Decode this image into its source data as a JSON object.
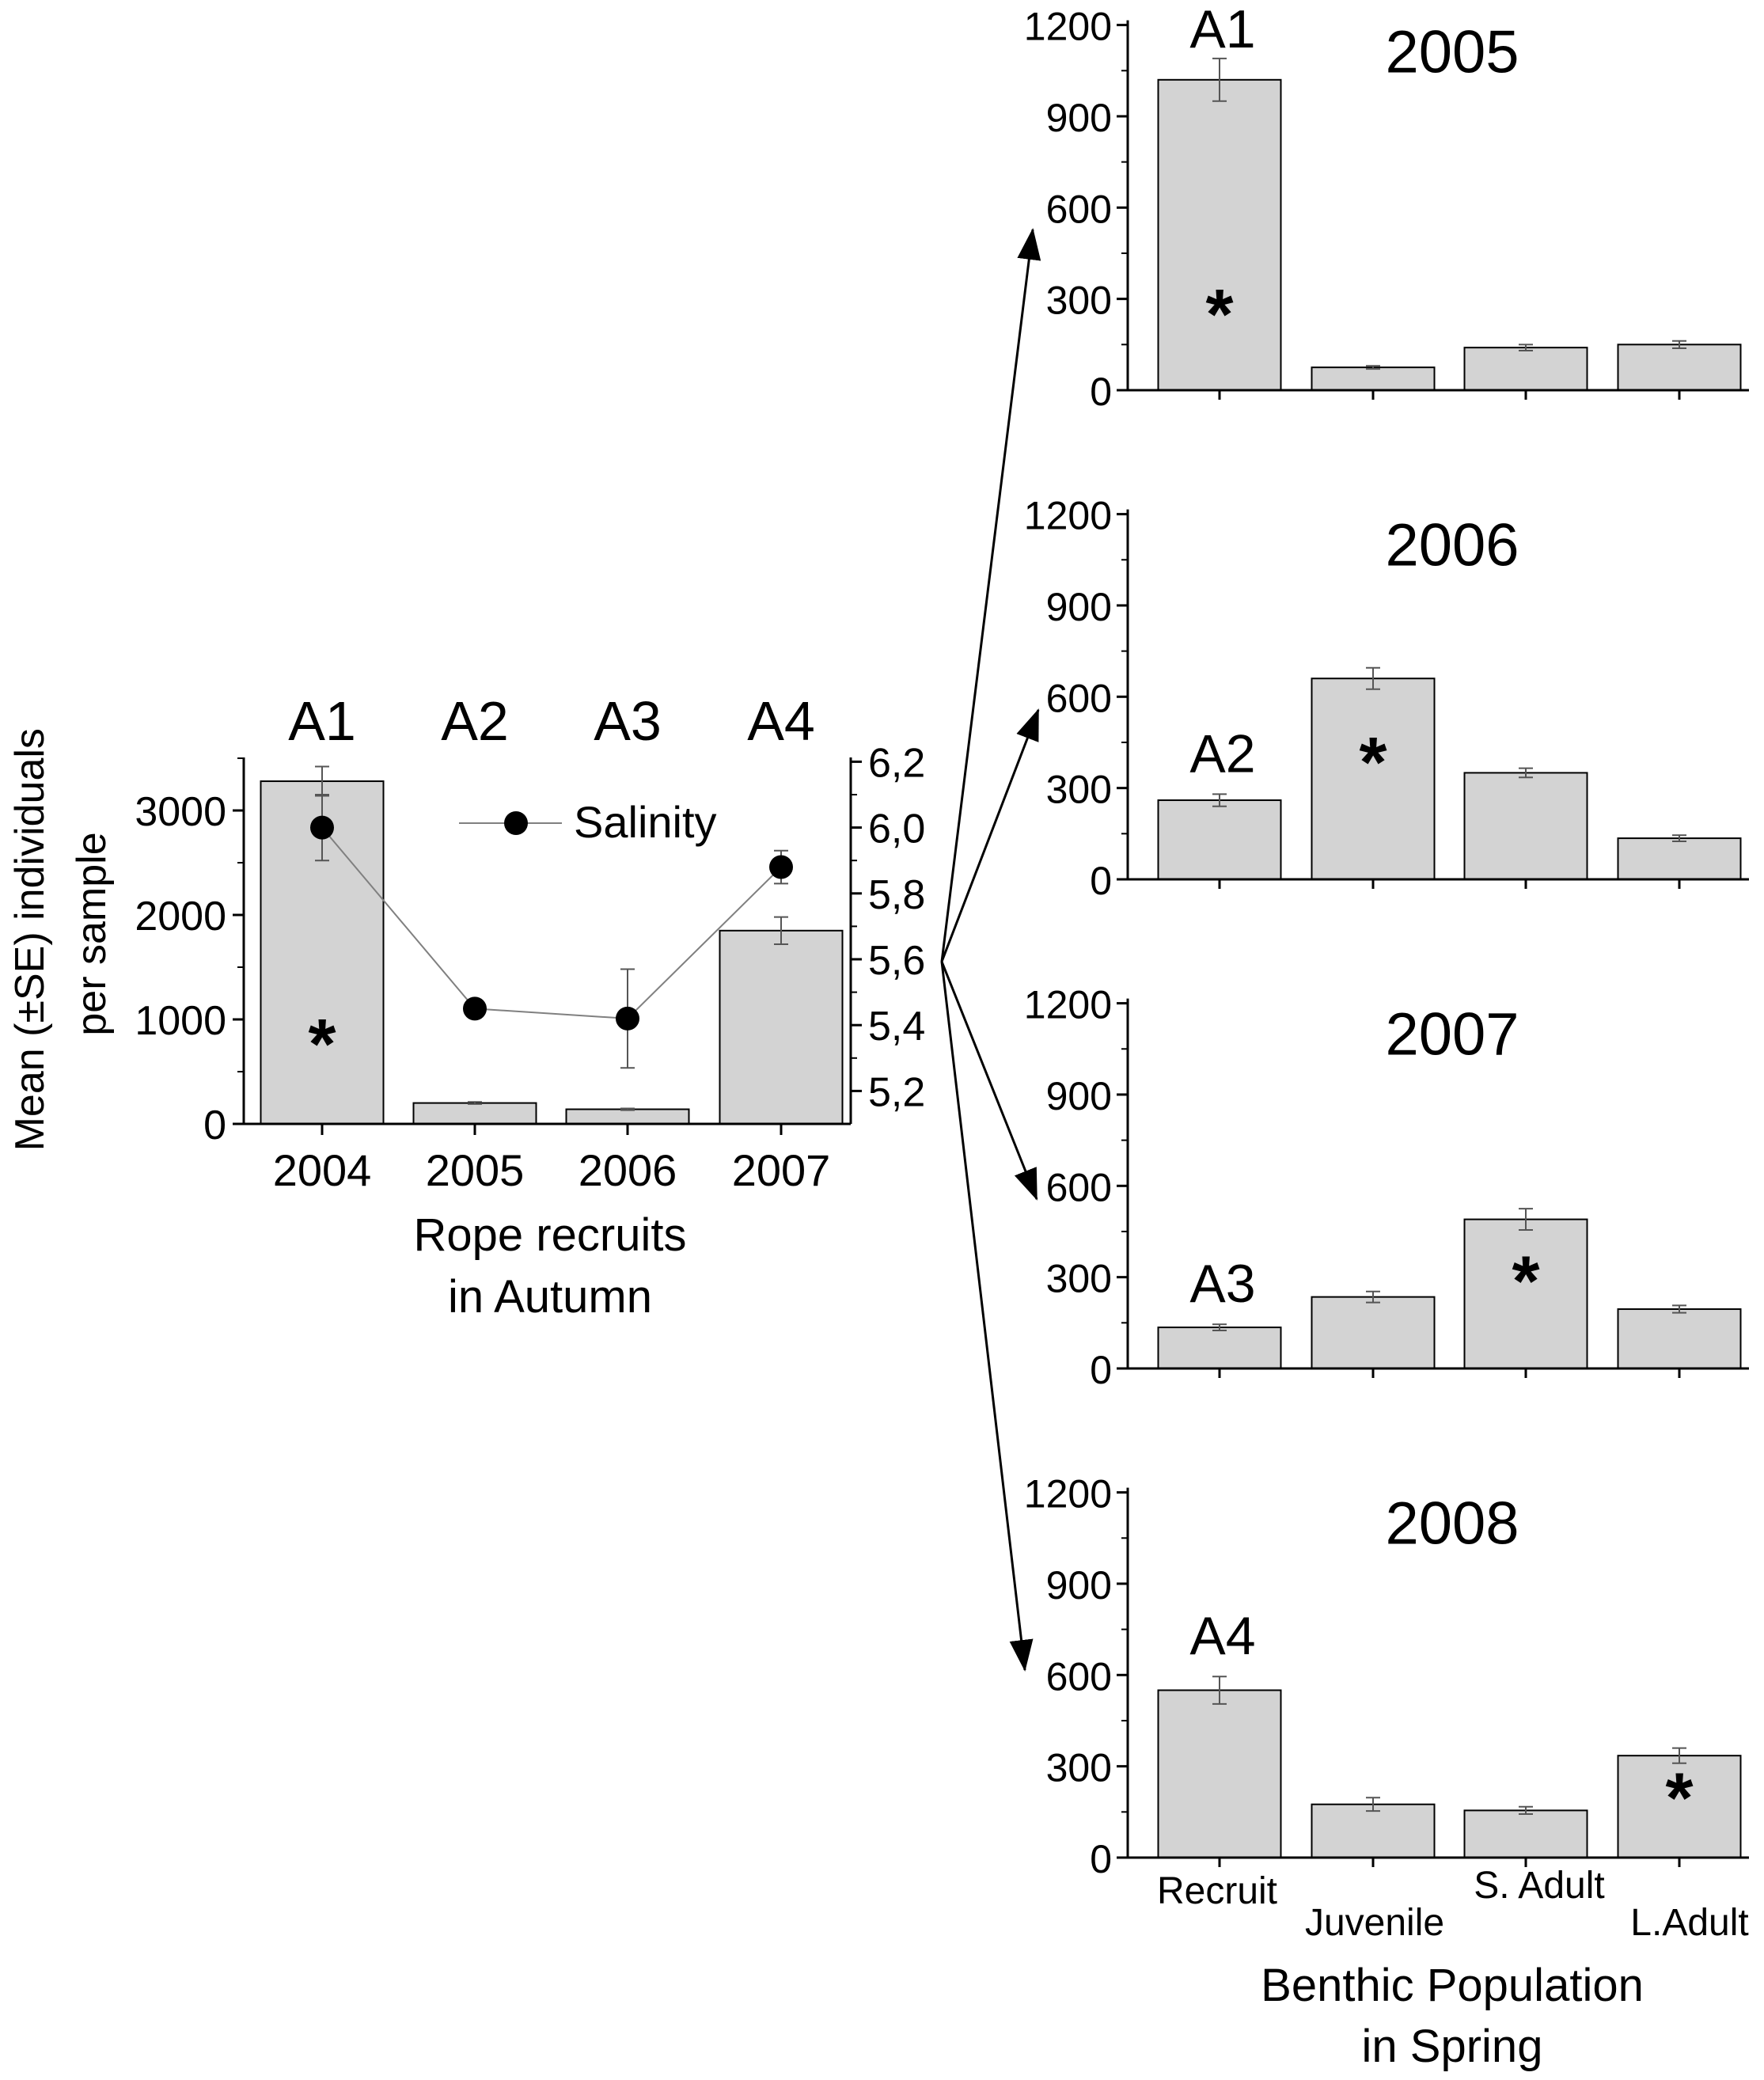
{
  "chart_data": [
    {
      "id": "rope-recruits",
      "type": "bar",
      "categories": [
        "2004",
        "2005",
        "2006",
        "2007"
      ],
      "values": [
        3280,
        200,
        140,
        1850
      ],
      "errors": [
        140,
        10,
        8,
        130
      ],
      "bar_annotations": [
        "A1",
        "A2",
        "A3",
        "A4"
      ],
      "significance": [
        "*",
        "",
        "",
        ""
      ],
      "ylim": [
        0,
        3500
      ],
      "yticks": [
        0,
        1000,
        2000,
        3000
      ],
      "ylabel": "Mean (±SE) individuals per sample",
      "ylabel_lines": [
        "Mean (±SE) individuals",
        "per sample"
      ],
      "xlabel_lines": [
        "Rope recruits",
        "in Autumn"
      ],
      "secondary_axis": {
        "ylim": [
          5.1,
          6.2
        ],
        "yticks": [
          "5,2",
          "5,4",
          "5,6",
          "5,8",
          "6,0",
          "6,2"
        ],
        "ytick_values": [
          5.2,
          5.4,
          5.6,
          5.8,
          6.0,
          6.2
        ]
      },
      "series": [
        {
          "name": "Salinity",
          "type": "line",
          "axis": "secondary",
          "values": [
            6.0,
            5.45,
            5.42,
            5.88
          ],
          "errors": [
            0.1,
            0.0,
            0.15,
            0.05
          ]
        }
      ],
      "legend": {
        "label": "Salinity",
        "position": "top-center"
      },
      "grid": false
    },
    {
      "id": "spring-2005",
      "type": "bar",
      "title": "2005",
      "annotation": "A1",
      "categories": [
        "Recruit",
        "Juvenile",
        "S. Adult",
        "L.Adult"
      ],
      "values": [
        1020,
        75,
        140,
        150
      ],
      "errors": [
        70,
        5,
        10,
        12
      ],
      "significance": [
        "*",
        "",
        "",
        ""
      ],
      "ylim": [
        0,
        1200
      ],
      "yticks": [
        0,
        300,
        600,
        900,
        1200
      ],
      "grid": false
    },
    {
      "id": "spring-2006",
      "type": "bar",
      "title": "2006",
      "annotation": "A2",
      "categories": [
        "Recruit",
        "Juvenile",
        "S. Adult",
        "L.Adult"
      ],
      "values": [
        260,
        660,
        350,
        135
      ],
      "errors": [
        20,
        35,
        15,
        10
      ],
      "significance": [
        "",
        "*",
        "",
        ""
      ],
      "ylim": [
        0,
        1200
      ],
      "yticks": [
        0,
        300,
        600,
        900,
        1200
      ],
      "grid": false
    },
    {
      "id": "spring-2007",
      "type": "bar",
      "title": "2007",
      "annotation": "A3",
      "categories": [
        "Recruit",
        "Juvenile",
        "S. Adult",
        "L.Adult"
      ],
      "values": [
        135,
        235,
        490,
        195
      ],
      "errors": [
        10,
        18,
        35,
        12
      ],
      "significance": [
        "",
        "",
        "*",
        ""
      ],
      "ylim": [
        0,
        1200
      ],
      "yticks": [
        0,
        300,
        600,
        900,
        1200
      ],
      "grid": false
    },
    {
      "id": "spring-2008",
      "type": "bar",
      "title": "2008",
      "annotation": "A4",
      "categories": [
        "Recruit",
        "Juvenile",
        "S. Adult",
        "L.Adult"
      ],
      "values": [
        550,
        175,
        155,
        335
      ],
      "errors": [
        45,
        22,
        12,
        25
      ],
      "significance": [
        "",
        "",
        "",
        "*"
      ],
      "ylim": [
        0,
        1200
      ],
      "yticks": [
        0,
        300,
        600,
        900,
        1200
      ],
      "xlabel_lines": [
        "Benthic Population",
        "in Spring"
      ],
      "grid": false
    }
  ],
  "colors": {
    "bar_fill": "#d3d3d3",
    "bar_stroke": "#000000",
    "line": "#808080",
    "marker": "#000000",
    "error_bar": "#555555"
  }
}
